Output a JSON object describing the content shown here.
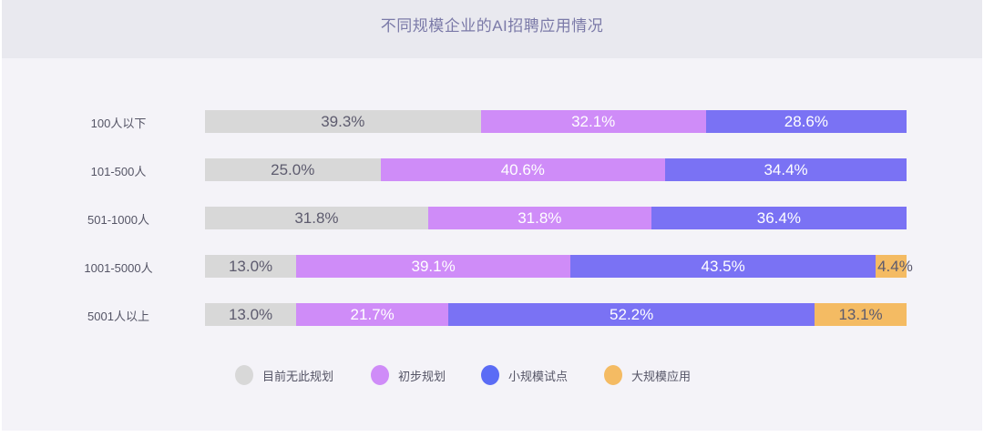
{
  "title": "不同规模企业的AI招聘应用情况",
  "colors": {
    "header_bg": "#e9e9ef",
    "body_bg": "#f4f3f8",
    "title": "#7b7aa8",
    "no_plan": "#d8d8d8",
    "initial_plan": "#cf8cf8",
    "small_pilot": "#7a72f4",
    "large_scale": "#f4bb63"
  },
  "legend": [
    {
      "label": "目前无此规划",
      "color": "#d8d8d8"
    },
    {
      "label": "初步规划",
      "color": "#cf8cf8"
    },
    {
      "label": "小规模试点",
      "color": "#5b6cf5"
    },
    {
      "label": "大规模应用",
      "color": "#f4bb63"
    }
  ],
  "rows": [
    {
      "label": "100人以下",
      "segments": [
        {
          "value": "39.3%"
        },
        {
          "value": "32.1%"
        },
        {
          "value": "28.6%"
        }
      ]
    },
    {
      "label": "101-500人",
      "segments": [
        {
          "value": "25.0%"
        },
        {
          "value": "40.6%"
        },
        {
          "value": "34.4%"
        }
      ]
    },
    {
      "label": "501-1000人",
      "segments": [
        {
          "value": "31.8%"
        },
        {
          "value": "31.8%"
        },
        {
          "value": "36.4%"
        }
      ]
    },
    {
      "label": "1001-5000人",
      "segments": [
        {
          "value": "13.0%"
        },
        {
          "value": "39.1%"
        },
        {
          "value": "43.5%"
        },
        {
          "value": "4.4%"
        }
      ]
    },
    {
      "label": "5001人以上",
      "segments": [
        {
          "value": "13.0%"
        },
        {
          "value": "21.7%"
        },
        {
          "value": "52.2%"
        },
        {
          "value": "13.1%"
        }
      ]
    }
  ],
  "chart_data": {
    "type": "bar",
    "orientation": "horizontal",
    "stacked": true,
    "percent_stacked": true,
    "title": "不同规模企业的AI招聘应用情况",
    "xlabel": "",
    "ylabel": "",
    "categories": [
      "100人以下",
      "101-500人",
      "501-1000人",
      "1001-5000人",
      "5001人以上"
    ],
    "series": [
      {
        "name": "目前无此规划",
        "color": "#d8d8d8",
        "values": [
          39.3,
          25.0,
          31.8,
          13.0,
          13.0
        ]
      },
      {
        "name": "初步规划",
        "color": "#cf8cf8",
        "values": [
          32.1,
          40.6,
          31.8,
          39.1,
          21.7
        ]
      },
      {
        "name": "小规模试点",
        "color": "#7a72f4",
        "values": [
          28.6,
          34.4,
          36.4,
          43.5,
          52.2
        ]
      },
      {
        "name": "大规模应用",
        "color": "#f4bb63",
        "values": [
          0,
          0,
          0,
          4.4,
          13.1
        ]
      }
    ],
    "xlim": [
      0,
      100
    ],
    "grid": false,
    "legend_position": "bottom",
    "data_labels": true
  }
}
